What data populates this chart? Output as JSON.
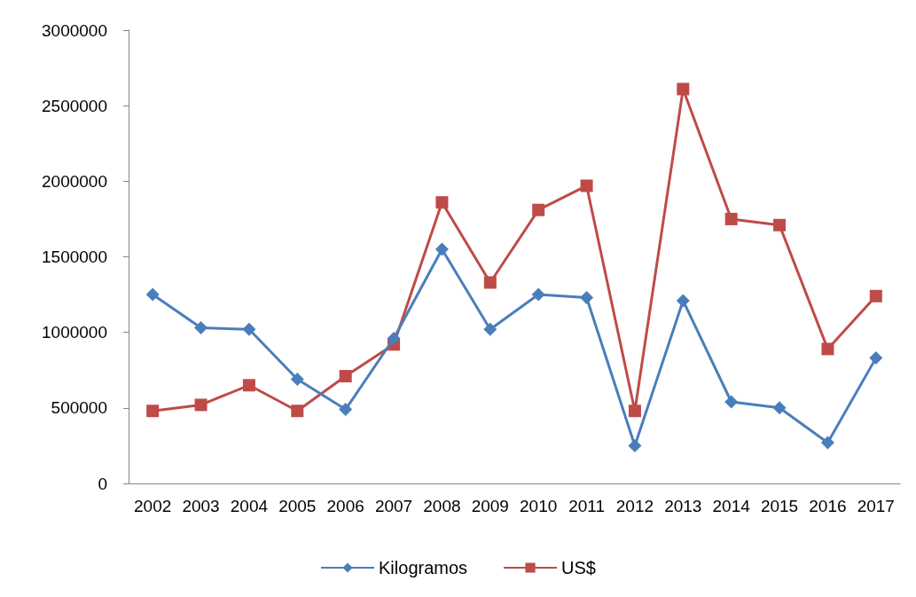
{
  "chart_data": {
    "type": "line",
    "categories": [
      "2002",
      "2003",
      "2004",
      "2005",
      "2006",
      "2007",
      "2008",
      "2009",
      "2010",
      "2011",
      "2012",
      "2013",
      "2014",
      "2015",
      "2016",
      "2017"
    ],
    "series": [
      {
        "name": "Kilogramos",
        "color": "#4a7ebb",
        "marker": "diamond",
        "values": [
          1250000,
          1030000,
          1020000,
          690000,
          490000,
          960000,
          1550000,
          1020000,
          1250000,
          1230000,
          250000,
          1210000,
          540000,
          500000,
          270000,
          830000
        ]
      },
      {
        "name": "US$",
        "color": "#be4b48",
        "marker": "square",
        "values": [
          480000,
          520000,
          650000,
          480000,
          710000,
          920000,
          1860000,
          1330000,
          1810000,
          1970000,
          480000,
          2610000,
          1750000,
          1710000,
          890000,
          1240000
        ]
      }
    ],
    "ylim": [
      0,
      3000000
    ],
    "yticks": [
      0,
      500000,
      1000000,
      1500000,
      2000000,
      2500000,
      3000000
    ],
    "grid": false,
    "legend": "bottom",
    "line_style": "solid"
  }
}
